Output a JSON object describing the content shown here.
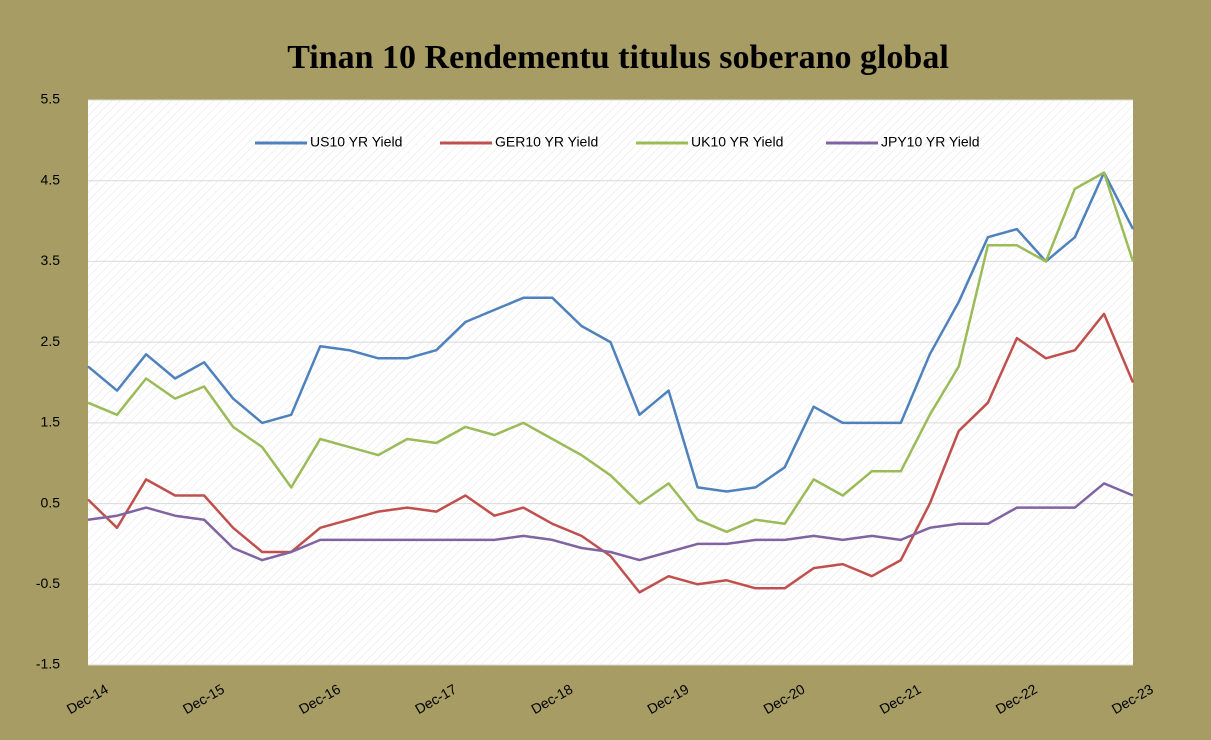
{
  "chart_data": {
    "type": "line",
    "title": "Tinan 10 Rendementu titulus soberano global",
    "categories": [
      "Dec-14",
      null,
      null,
      null,
      "Dec-15",
      null,
      null,
      null,
      "Dec-16",
      null,
      null,
      null,
      "Dec-17",
      null,
      null,
      null,
      "Dec-18",
      null,
      null,
      null,
      "Dec-19",
      null,
      null,
      null,
      "Dec-20",
      null,
      null,
      null,
      "Dec-21",
      null,
      null,
      null,
      "Dec-22",
      null,
      null,
      null,
      "Dec-23"
    ],
    "series": [
      {
        "name": "US10 YR Yield",
        "color": "#4f81bd",
        "values": [
          2.2,
          1.9,
          2.35,
          2.05,
          2.25,
          1.8,
          1.5,
          1.6,
          2.45,
          2.4,
          2.3,
          2.3,
          2.4,
          2.75,
          2.9,
          3.05,
          3.05,
          2.7,
          2.5,
          1.6,
          1.9,
          0.7,
          0.65,
          0.7,
          0.95,
          1.7,
          1.5,
          1.5,
          1.5,
          2.35,
          3.0,
          3.8,
          3.9,
          3.5,
          3.8,
          4.6,
          3.9
        ]
      },
      {
        "name": "GER10 YR Yield",
        "color": "#c0504d",
        "values": [
          0.55,
          0.2,
          0.8,
          0.6,
          0.6,
          0.2,
          -0.1,
          -0.1,
          0.2,
          0.3,
          0.4,
          0.45,
          0.4,
          0.6,
          0.35,
          0.45,
          0.25,
          0.1,
          -0.15,
          -0.6,
          -0.4,
          -0.5,
          -0.45,
          -0.55,
          -0.55,
          -0.3,
          -0.25,
          -0.4,
          -0.2,
          0.5,
          1.4,
          1.75,
          2.55,
          2.3,
          2.4,
          2.85,
          2.0
        ]
      },
      {
        "name": "UK10 YR Yield",
        "color": "#9bbb59",
        "values": [
          1.75,
          1.6,
          2.05,
          1.8,
          1.95,
          1.45,
          1.2,
          0.7,
          1.3,
          1.2,
          1.1,
          1.3,
          1.25,
          1.45,
          1.35,
          1.5,
          1.3,
          1.1,
          0.85,
          0.5,
          0.75,
          0.3,
          0.15,
          0.3,
          0.25,
          0.8,
          0.6,
          0.9,
          0.9,
          1.6,
          2.2,
          3.7,
          3.7,
          3.5,
          4.4,
          4.6,
          3.5
        ]
      },
      {
        "name": "JPY10 YR Yield",
        "color": "#8064a2",
        "values": [
          0.3,
          0.35,
          0.45,
          0.35,
          0.3,
          -0.05,
          -0.2,
          -0.1,
          0.05,
          0.05,
          0.05,
          0.05,
          0.05,
          0.05,
          0.05,
          0.1,
          0.05,
          -0.05,
          -0.1,
          -0.2,
          -0.1,
          0.0,
          0.0,
          0.05,
          0.05,
          0.1,
          0.05,
          0.1,
          0.05,
          0.2,
          0.25,
          0.25,
          0.45,
          0.45,
          0.45,
          0.75,
          0.6
        ]
      }
    ],
    "ylim": [
      -1.5,
      5.5
    ],
    "yticks": [
      -1.5,
      -0.5,
      0.5,
      1.5,
      2.5,
      3.5,
      4.5,
      5.5
    ],
    "grid": true
  }
}
